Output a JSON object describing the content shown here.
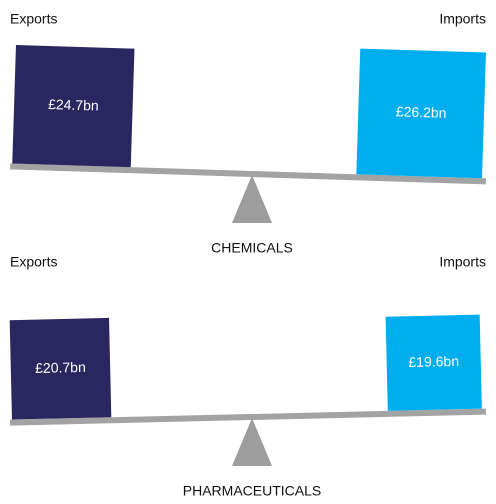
{
  "chart_data": [
    {
      "type": "balance",
      "title": "CHEMICALS",
      "categories": [
        "Exports",
        "Imports"
      ],
      "values": [
        24.7,
        26.2
      ],
      "value_labels": [
        "£24.7bn",
        "£26.2bn"
      ],
      "colors": [
        "#2a2760",
        "#00aeef"
      ]
    },
    {
      "type": "balance",
      "title": "PHARMACEUTICALS",
      "categories": [
        "Exports",
        "Imports"
      ],
      "values": [
        20.7,
        19.6
      ],
      "value_labels": [
        "£20.7bn",
        "£19.6bn"
      ],
      "colors": [
        "#2a2760",
        "#00aeef"
      ]
    }
  ]
}
